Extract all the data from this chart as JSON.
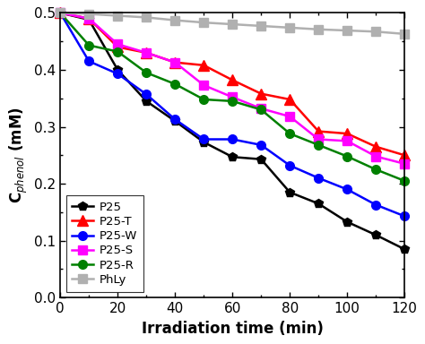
{
  "x": [
    0,
    10,
    20,
    30,
    40,
    50,
    60,
    70,
    80,
    90,
    100,
    110,
    120
  ],
  "series": {
    "P25": {
      "y": [
        0.5,
        0.488,
        0.4,
        0.345,
        0.31,
        0.273,
        0.247,
        0.243,
        0.185,
        0.165,
        0.133,
        0.11,
        0.085
      ],
      "color": "#000000",
      "marker": "p",
      "linestyle": "-",
      "ms": 7
    },
    "P25-T": {
      "y": [
        0.5,
        0.49,
        0.44,
        0.43,
        0.413,
        0.408,
        0.382,
        0.358,
        0.348,
        0.292,
        0.288,
        0.265,
        0.25
      ],
      "color": "#ff0000",
      "marker": "^",
      "linestyle": "-",
      "ms": 8
    },
    "P25-W": {
      "y": [
        0.5,
        0.415,
        0.393,
        0.357,
        0.313,
        0.278,
        0.278,
        0.268,
        0.232,
        0.21,
        0.19,
        0.163,
        0.143
      ],
      "color": "#0000ff",
      "marker": "o",
      "linestyle": "-",
      "ms": 7
    },
    "P25-S": {
      "y": [
        0.5,
        0.49,
        0.445,
        0.43,
        0.413,
        0.373,
        0.352,
        0.332,
        0.318,
        0.278,
        0.275,
        0.248,
        0.235
      ],
      "color": "#ff00ff",
      "marker": "s",
      "linestyle": "-",
      "ms": 7
    },
    "P25-R": {
      "y": [
        0.5,
        0.443,
        0.432,
        0.395,
        0.375,
        0.348,
        0.345,
        0.33,
        0.288,
        0.268,
        0.248,
        0.225,
        0.205
      ],
      "color": "#008000",
      "marker": "o",
      "linestyle": "-",
      "ms": 7
    },
    "PhLy": {
      "y": [
        0.5,
        0.498,
        0.495,
        0.492,
        0.487,
        0.483,
        0.48,
        0.477,
        0.474,
        0.471,
        0.469,
        0.467,
        0.463
      ],
      "color": "#b0b0b0",
      "marker": "s",
      "linestyle": "-",
      "ms": 7
    }
  },
  "xlabel": "Irradiation time (min)",
  "ylabel": "C$_{phenol}$ (mM)",
  "xlim": [
    0,
    120
  ],
  "ylim": [
    0.0,
    0.5
  ],
  "xticks": [
    0,
    20,
    40,
    60,
    80,
    100,
    120
  ],
  "yticks": [
    0.0,
    0.1,
    0.2,
    0.3,
    0.4,
    0.5
  ],
  "legend_order": [
    "P25",
    "P25-T",
    "P25-W",
    "P25-S",
    "P25-R",
    "PhLy"
  ],
  "linewidth": 1.8
}
